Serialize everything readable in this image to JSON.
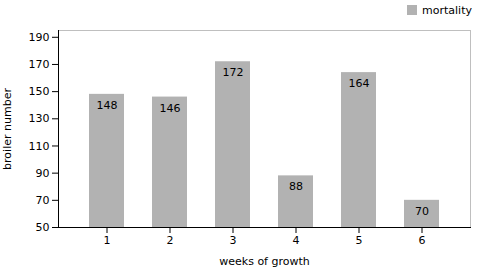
{
  "chart_data": {
    "type": "bar",
    "xlabel": "weeks of growth",
    "ylabel": "broiler number",
    "categories": [
      1,
      2,
      3,
      4,
      5,
      6
    ],
    "series": [
      {
        "name": "mortality",
        "color": "#b2b2b2",
        "values": [
          148,
          146,
          172,
          88,
          164,
          70
        ]
      }
    ],
    "ylim": [
      50,
      195
    ],
    "yticks": [
      50,
      70,
      90,
      110,
      130,
      150,
      170,
      190
    ],
    "legend": "upper right",
    "data_labels": true,
    "grid": false
  }
}
